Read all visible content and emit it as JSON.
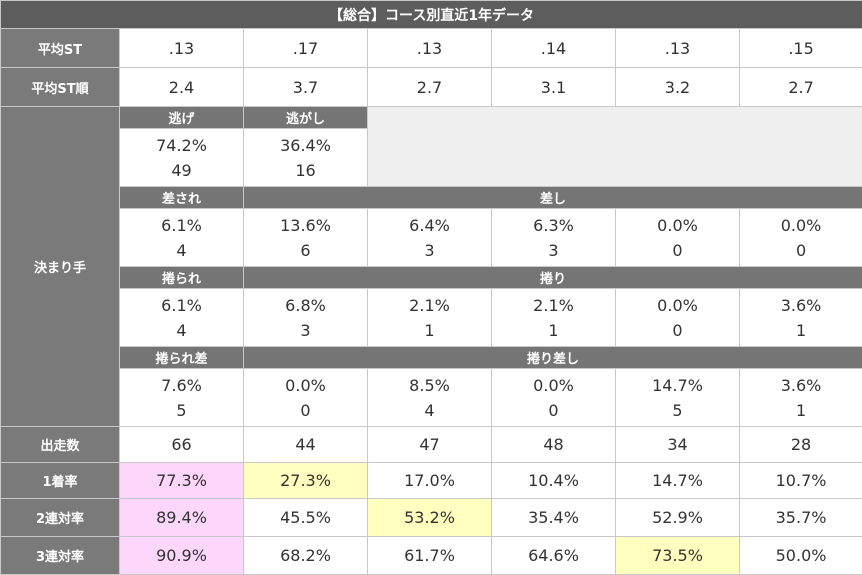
{
  "title": "【総合】コース別直近1年データ",
  "colors": {
    "header_bg": "#5d5d5d",
    "row_header_bg": "#7a7a7a",
    "highlight_pink": "#fdd6fb",
    "highlight_yellow": "#ffffbf",
    "empty_cell": "#efefef"
  },
  "avg_st": {
    "label": "平均ST",
    "values": [
      ".13",
      ".17",
      ".13",
      ".14",
      ".13",
      ".15"
    ]
  },
  "avg_st_rank": {
    "label": "平均ST順",
    "values": [
      "2.4",
      "3.7",
      "2.7",
      "3.1",
      "3.2",
      "2.7"
    ]
  },
  "kimarite": {
    "label": "決まり手",
    "nige": {
      "label": "逃げ",
      "pct": "74.2%",
      "count": "49"
    },
    "nigashi": {
      "label": "逃がし",
      "pct": "36.4%",
      "count": "16"
    },
    "sasare": {
      "label": "差され",
      "pct": "6.1%",
      "count": "4"
    },
    "sashi": {
      "label": "差し",
      "cells": [
        {
          "pct": "13.6%",
          "count": "6"
        },
        {
          "pct": "6.4%",
          "count": "3"
        },
        {
          "pct": "6.3%",
          "count": "3"
        },
        {
          "pct": "0.0%",
          "count": "0"
        },
        {
          "pct": "0.0%",
          "count": "0"
        }
      ]
    },
    "makurare": {
      "label": "捲られ",
      "pct": "6.1%",
      "count": "4"
    },
    "makuri": {
      "label": "捲り",
      "cells": [
        {
          "pct": "6.8%",
          "count": "3"
        },
        {
          "pct": "2.1%",
          "count": "1"
        },
        {
          "pct": "2.1%",
          "count": "1"
        },
        {
          "pct": "0.0%",
          "count": "0"
        },
        {
          "pct": "3.6%",
          "count": "1"
        }
      ]
    },
    "makurare_sashi": {
      "label": "捲られ差",
      "pct": "7.6%",
      "count": "5"
    },
    "makuri_sashi": {
      "label": "捲り差し",
      "cells": [
        {
          "pct": "0.0%",
          "count": "0"
        },
        {
          "pct": "8.5%",
          "count": "4"
        },
        {
          "pct": "0.0%",
          "count": "0"
        },
        {
          "pct": "14.7%",
          "count": "5"
        },
        {
          "pct": "3.6%",
          "count": "1"
        }
      ]
    }
  },
  "starts": {
    "label": "出走数",
    "values": [
      "66",
      "44",
      "47",
      "48",
      "34",
      "28"
    ]
  },
  "win_rate": {
    "label": "1着率",
    "values": [
      "77.3%",
      "27.3%",
      "17.0%",
      "10.4%",
      "14.7%",
      "10.7%"
    ]
  },
  "top2_rate": {
    "label": "2連対率",
    "values": [
      "89.4%",
      "45.5%",
      "53.2%",
      "35.4%",
      "52.9%",
      "35.7%"
    ]
  },
  "top3_rate": {
    "label": "3連対率",
    "values": [
      "90.9%",
      "68.2%",
      "61.7%",
      "64.6%",
      "73.5%",
      "50.0%"
    ]
  }
}
